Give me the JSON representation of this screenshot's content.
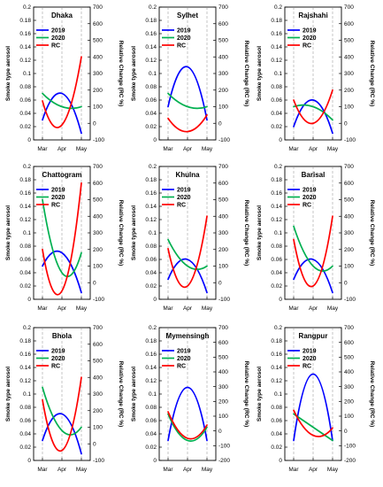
{
  "chart_data": [
    {
      "type": "line",
      "title": "Dhaka",
      "ylabel": "Smoke type aerosol",
      "y2label": "Relative Change (RC %)",
      "x_ticks": [
        "Mar",
        "Apr",
        "May"
      ],
      "ylim": [
        0,
        0.2
      ],
      "y2lim": [
        -100,
        700
      ],
      "y_ticks": [
        "0",
        "0.02",
        "0.04",
        "0.06",
        "0.08",
        "0.1",
        "0.12",
        "0.14",
        "0.16",
        "0.18",
        "0.2"
      ],
      "y2_ticks": [
        "-100",
        "0",
        "100",
        "200",
        "300",
        "400",
        "500",
        "600",
        "700"
      ],
      "legend": [
        "2019",
        "2020",
        "RC"
      ],
      "series": [
        {
          "name": "2019",
          "axis": "left",
          "color": "#0000ff",
          "points": [
            [
              0,
              0.03
            ],
            [
              1,
              0.07
            ],
            [
              2,
              0.01
            ]
          ]
        },
        {
          "name": "2020",
          "axis": "left",
          "color": "#00b050",
          "points": [
            [
              0,
              0.07
            ],
            [
              1,
              0.05
            ],
            [
              2,
              0.05
            ]
          ]
        },
        {
          "name": "RC",
          "axis": "right",
          "color": "#ff0000",
          "points": [
            [
              0,
              135
            ],
            [
              1,
              -10
            ],
            [
              2,
              400
            ]
          ]
        }
      ]
    },
    {
      "type": "line",
      "title": "Sylhet",
      "ylabel": "Smoke type aerosol",
      "y2label": "Relative Change (RC %)",
      "x_ticks": [
        "Mar",
        "Apr",
        "May"
      ],
      "ylim": [
        0,
        0.2
      ],
      "y2lim": [
        -100,
        700
      ],
      "y_ticks": [
        "0",
        "0.02",
        "0.04",
        "0.06",
        "0.08",
        "0.1",
        "0.12",
        "0.14",
        "0.16",
        "0.18",
        "0.2"
      ],
      "y2_ticks": [
        "-100",
        "0",
        "100",
        "200",
        "300",
        "400",
        "500",
        "600",
        "700"
      ],
      "legend": [
        "2019",
        "2020",
        "RC"
      ],
      "series": [
        {
          "name": "2019",
          "axis": "left",
          "color": "#0000ff",
          "points": [
            [
              0,
              0.05
            ],
            [
              1,
              0.11
            ],
            [
              2,
              0.03
            ]
          ]
        },
        {
          "name": "2020",
          "axis": "left",
          "color": "#00b050",
          "points": [
            [
              0,
              0.07
            ],
            [
              1,
              0.05
            ],
            [
              2,
              0.05
            ]
          ]
        },
        {
          "name": "RC",
          "axis": "right",
          "color": "#ff0000",
          "points": [
            [
              0,
              30
            ],
            [
              1,
              -50
            ],
            [
              2,
              50
            ]
          ]
        }
      ]
    },
    {
      "type": "line",
      "title": "Rajshahi",
      "ylabel": "Smoke type aerosol",
      "y2label": "Relative Change (RC %)",
      "x_ticks": [
        "Mar",
        "Apr",
        "May"
      ],
      "ylim": [
        0,
        0.2
      ],
      "y2lim": [
        -100,
        700
      ],
      "y_ticks": [
        "0",
        "0.02",
        "0.04",
        "0.06",
        "0.08",
        "0.1",
        "0.12",
        "0.14",
        "0.16",
        "0.18",
        "0.2"
      ],
      "y2_ticks": [
        "-100",
        "0",
        "100",
        "200",
        "300",
        "400",
        "500",
        "600",
        "700"
      ],
      "legend": [
        "2019",
        "2020",
        "RC"
      ],
      "series": [
        {
          "name": "2019",
          "axis": "left",
          "color": "#0000ff",
          "points": [
            [
              0,
              0.02
            ],
            [
              1,
              0.06
            ],
            [
              2,
              0.01
            ]
          ]
        },
        {
          "name": "2020",
          "axis": "left",
          "color": "#00b050",
          "points": [
            [
              0,
              0.05
            ],
            [
              1,
              0.05
            ],
            [
              2,
              0.03
            ]
          ]
        },
        {
          "name": "RC",
          "axis": "right",
          "color": "#ff0000",
          "points": [
            [
              0,
              140
            ],
            [
              1,
              0
            ],
            [
              2,
              200
            ]
          ]
        }
      ]
    },
    {
      "type": "line",
      "title": "Chattogram",
      "ylabel": "Smoke type aerosol",
      "y2label": "Relative Change (RC %)",
      "x_ticks": [
        "Mar",
        "Apr",
        "May"
      ],
      "ylim": [
        0,
        0.2
      ],
      "y2lim": [
        -100,
        700
      ],
      "y_ticks": [
        "0",
        "0.02",
        "0.04",
        "0.06",
        "0.08",
        "0.1",
        "0.12",
        "0.14",
        "0.16",
        "0.18",
        "0.2"
      ],
      "y2_ticks": [
        "-100",
        "0",
        "100",
        "200",
        "300",
        "400",
        "500",
        "600",
        "700"
      ],
      "legend": [
        "2019",
        "2020",
        "RC"
      ],
      "series": [
        {
          "name": "2019",
          "axis": "left",
          "color": "#0000ff",
          "points": [
            [
              0,
              0.05
            ],
            [
              1,
              0.07
            ],
            [
              2,
              0.01
            ]
          ]
        },
        {
          "name": "2020",
          "axis": "left",
          "color": "#00b050",
          "points": [
            [
              0,
              0.15
            ],
            [
              1,
              0.04
            ],
            [
              2,
              0.07
            ]
          ]
        },
        {
          "name": "RC",
          "axis": "right",
          "color": "#ff0000",
          "points": [
            [
              0,
              200
            ],
            [
              1,
              -50
            ],
            [
              2,
              600
            ]
          ]
        }
      ]
    },
    {
      "type": "line",
      "title": "Khulna",
      "ylabel": "Smoke type aerosol",
      "y2label": "Relative Change (RC %)",
      "x_ticks": [
        "Mar",
        "Apr",
        "May"
      ],
      "ylim": [
        0,
        0.2
      ],
      "y2lim": [
        -100,
        700
      ],
      "y_ticks": [
        "0",
        "0.02",
        "0.04",
        "0.06",
        "0.08",
        "0.1",
        "0.12",
        "0.14",
        "0.16",
        "0.18",
        "0.2"
      ],
      "y2_ticks": [
        "-100",
        "0",
        "100",
        "200",
        "300",
        "400",
        "500",
        "600",
        "700"
      ],
      "legend": [
        "2019",
        "2020",
        "RC"
      ],
      "series": [
        {
          "name": "2019",
          "axis": "left",
          "color": "#0000ff",
          "points": [
            [
              0,
              0.03
            ],
            [
              1,
              0.06
            ],
            [
              2,
              0.01
            ]
          ]
        },
        {
          "name": "2020",
          "axis": "left",
          "color": "#00b050",
          "points": [
            [
              0,
              0.09
            ],
            [
              1,
              0.05
            ],
            [
              2,
              0.05
            ]
          ]
        },
        {
          "name": "RC",
          "axis": "right",
          "color": "#ff0000",
          "points": [
            [
              0,
              205
            ],
            [
              1,
              -20
            ],
            [
              2,
              400
            ]
          ]
        }
      ]
    },
    {
      "type": "line",
      "title": "Barisal",
      "ylabel": "Smoke type aerosol",
      "y2label": "Relative Change (RC %)",
      "x_ticks": [
        "Mar",
        "Apr",
        "May"
      ],
      "ylim": [
        0,
        0.2
      ],
      "y2lim": [
        -100,
        700
      ],
      "y_ticks": [
        "0",
        "0.02",
        "0.04",
        "0.06",
        "0.08",
        "0.1",
        "0.12",
        "0.14",
        "0.16",
        "0.18",
        "0.2"
      ],
      "y2_ticks": [
        "-100",
        "0",
        "100",
        "200",
        "300",
        "400",
        "500",
        "600",
        "700"
      ],
      "legend": [
        "2019",
        "2020",
        "RC"
      ],
      "series": [
        {
          "name": "2019",
          "axis": "left",
          "color": "#0000ff",
          "points": [
            [
              0,
              0.03
            ],
            [
              1,
              0.06
            ],
            [
              2,
              0.01
            ]
          ]
        },
        {
          "name": "2020",
          "axis": "left",
          "color": "#00b050",
          "points": [
            [
              0,
              0.11
            ],
            [
              1,
              0.05
            ],
            [
              2,
              0.05
            ]
          ]
        },
        {
          "name": "RC",
          "axis": "right",
          "color": "#ff0000",
          "points": [
            [
              0,
              260
            ],
            [
              1,
              -20
            ],
            [
              2,
              400
            ]
          ]
        }
      ]
    },
    {
      "type": "line",
      "title": "Bhola",
      "ylabel": "Smoke type aerosol",
      "y2label": "Relative Change (RC %)",
      "x_ticks": [
        "Mar",
        "Apr",
        "May"
      ],
      "ylim": [
        0,
        0.2
      ],
      "y2lim": [
        -100,
        700
      ],
      "y_ticks": [
        "0",
        "0.02",
        "0.04",
        "0.06",
        "0.08",
        "0.1",
        "0.12",
        "0.14",
        "0.16",
        "0.18",
        "0.2"
      ],
      "y2_ticks": [
        "-100",
        "0",
        "100",
        "200",
        "300",
        "400",
        "500",
        "600",
        "700"
      ],
      "legend": [
        "2019",
        "2020",
        "RC"
      ],
      "series": [
        {
          "name": "2019",
          "axis": "left",
          "color": "#0000ff",
          "points": [
            [
              0,
              0.03
            ],
            [
              1,
              0.07
            ],
            [
              2,
              0.01
            ]
          ]
        },
        {
          "name": "2020",
          "axis": "left",
          "color": "#00b050",
          "points": [
            [
              0,
              0.11
            ],
            [
              1,
              0.045
            ],
            [
              2,
              0.05
            ]
          ]
        },
        {
          "name": "RC",
          "axis": "right",
          "color": "#ff0000",
          "points": [
            [
              0,
              265
            ],
            [
              1,
              -40
            ],
            [
              2,
              400
            ]
          ]
        }
      ]
    },
    {
      "type": "line",
      "title": "Mymensingh",
      "ylabel": "Smoke type aerosol",
      "y2label": "Relative Change (RC %)",
      "x_ticks": [
        "Mar",
        "Apr",
        "May"
      ],
      "ylim": [
        0,
        0.2
      ],
      "y2lim": [
        -200,
        700
      ],
      "y_ticks": [
        "0",
        "0.02",
        "0.04",
        "0.06",
        "0.08",
        "0.1",
        "0.12",
        "0.14",
        "0.16",
        "0.18",
        "0.2"
      ],
      "y2_ticks": [
        "-200",
        "-100",
        "0",
        "100",
        "200",
        "300",
        "400",
        "500",
        "600",
        "700"
      ],
      "legend": [
        "2019",
        "2020",
        "RC"
      ],
      "series": [
        {
          "name": "2019",
          "axis": "left",
          "color": "#0000ff",
          "points": [
            [
              0,
              0.03
            ],
            [
              1,
              0.11
            ],
            [
              2,
              0.03
            ]
          ]
        },
        {
          "name": "2020",
          "axis": "left",
          "color": "#00b050",
          "points": [
            [
              0,
              0.07
            ],
            [
              1,
              0.03
            ],
            [
              2,
              0.05
            ]
          ]
        },
        {
          "name": "RC",
          "axis": "right",
          "color": "#ff0000",
          "points": [
            [
              0,
              130
            ],
            [
              1,
              -50
            ],
            [
              2,
              40
            ]
          ]
        }
      ]
    },
    {
      "type": "line",
      "title": "Rangpur",
      "ylabel": "Smoke type aerosol",
      "y2label": "Relative Change (RC %)",
      "x_ticks": [
        "Mar",
        "Apr",
        "May"
      ],
      "ylim": [
        0,
        0.2
      ],
      "y2lim": [
        -200,
        700
      ],
      "y_ticks": [
        "0",
        "0.02",
        "0.04",
        "0.06",
        "0.08",
        "0.1",
        "0.12",
        "0.14",
        "0.16",
        "0.18",
        "0.2"
      ],
      "y2_ticks": [
        "-200",
        "-100",
        "0",
        "100",
        "200",
        "300",
        "400",
        "500",
        "600",
        "700"
      ],
      "legend": [
        "2019",
        "2020",
        "RC"
      ],
      "series": [
        {
          "name": "2019",
          "axis": "left",
          "color": "#0000ff",
          "points": [
            [
              0,
              0.03
            ],
            [
              1,
              0.13
            ],
            [
              2,
              0.03
            ]
          ]
        },
        {
          "name": "2020",
          "axis": "left",
          "color": "#00b050",
          "points": [
            [
              0,
              0.07
            ],
            [
              1,
              0.05
            ],
            [
              2,
              0.03
            ]
          ]
        },
        {
          "name": "RC",
          "axis": "right",
          "color": "#ff0000",
          "points": [
            [
              0,
              140
            ],
            [
              1,
              -30
            ],
            [
              2,
              20
            ]
          ]
        }
      ]
    }
  ]
}
